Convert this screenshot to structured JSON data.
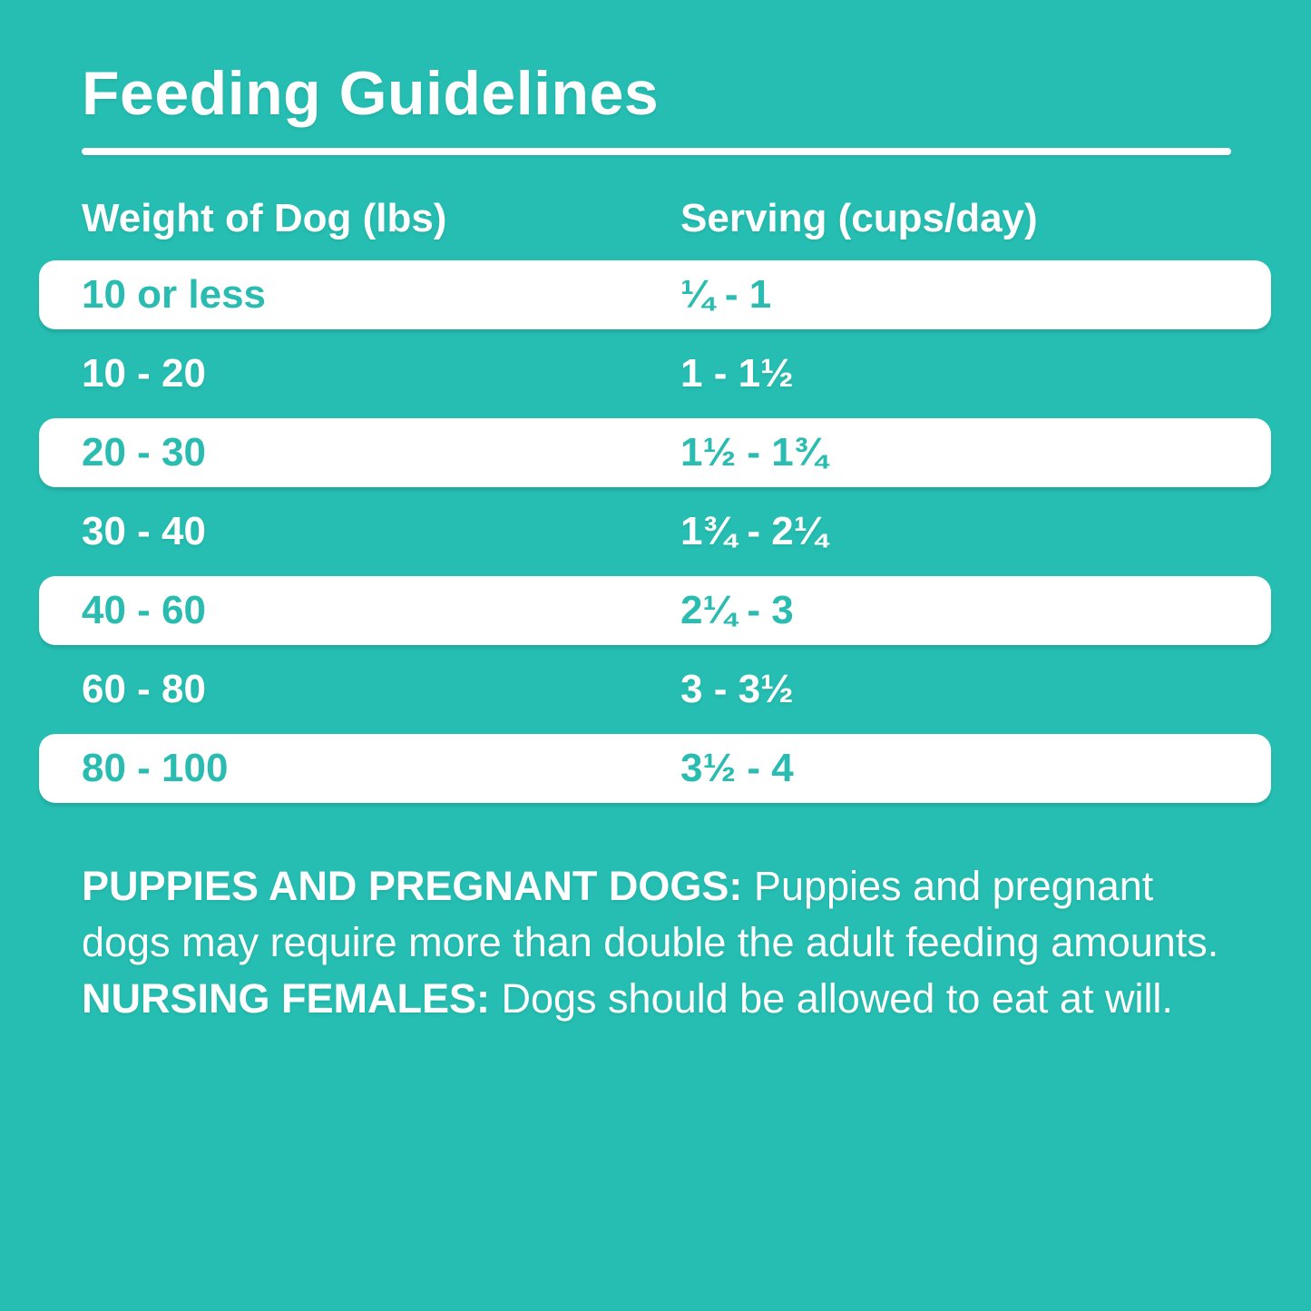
{
  "title": "Feeding Guidelines",
  "colors": {
    "background_teal": "#26beb2",
    "row_highlight_white": "#ffffff",
    "teal_text": "#2abcb0",
    "white_text": "#ffffff"
  },
  "table": {
    "col1_header": "Weight of Dog (lbs)",
    "col2_header": "Serving (cups/day)",
    "rows": [
      {
        "weight": "10 or less",
        "serving": "¼ - 1"
      },
      {
        "weight": "10 - 20",
        "serving": "1 - 1½"
      },
      {
        "weight": "20 - 30",
        "serving": "1½ - 1¾"
      },
      {
        "weight": "30 - 40",
        "serving": "1¾ - 2¼"
      },
      {
        "weight": "40 - 60",
        "serving": "2¼ - 3"
      },
      {
        "weight": "60 - 80",
        "serving": "3 - 3½"
      },
      {
        "weight": "80 - 100",
        "serving": "3½ - 4"
      }
    ]
  },
  "footer": {
    "bold1": "PUPPIES AND PREGNANT DOGS:",
    "text1": " Puppies and pregnant dogs may require more than double the adult feeding amounts. ",
    "bold2": "NURSING FEMALES:",
    "text2": " Dogs should be allowed to eat at will."
  }
}
